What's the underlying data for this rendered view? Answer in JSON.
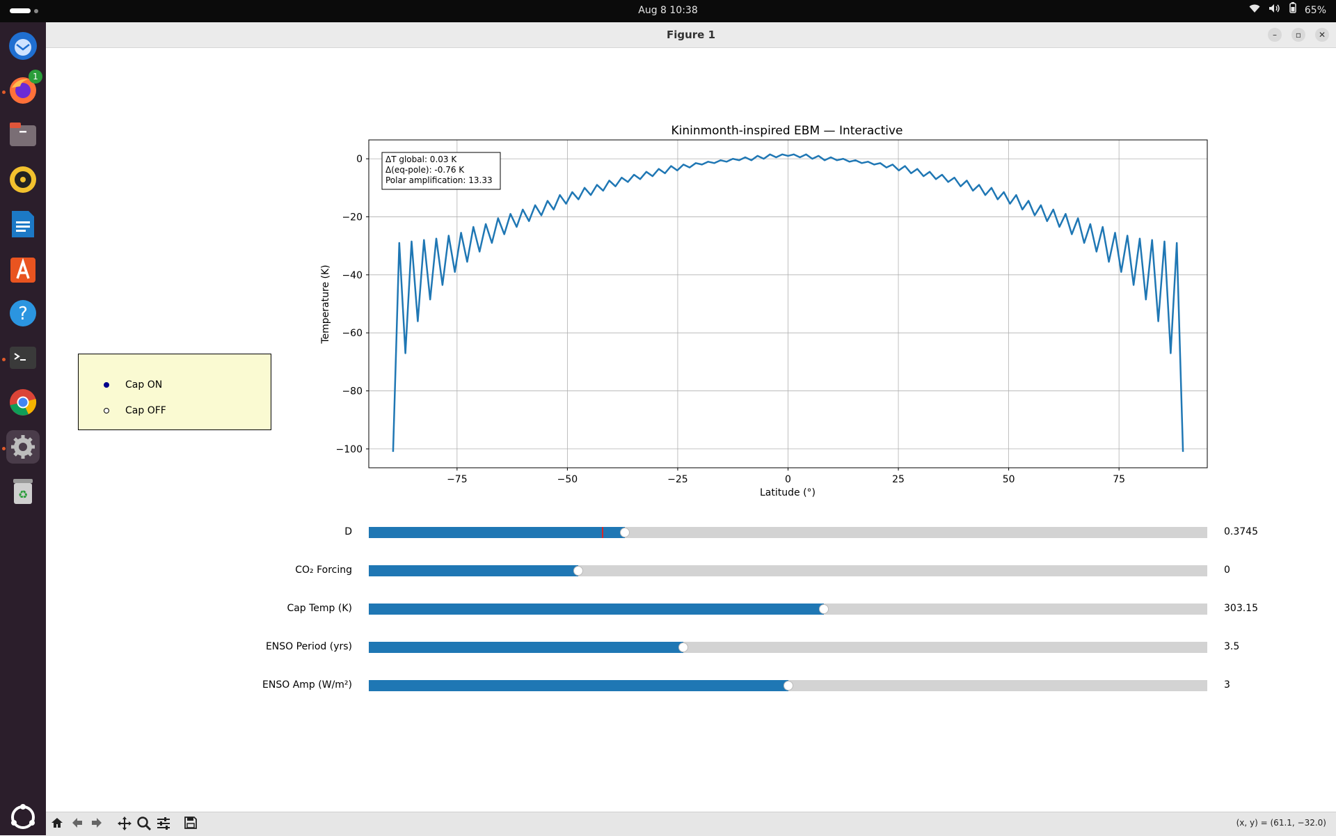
{
  "topbar": {
    "datetime": "Aug 8  10:38",
    "battery": "65%"
  },
  "dock": {
    "items": [
      "thunderbird-icon",
      "firefox-icon",
      "files-icon",
      "rhythmbox-icon",
      "writer-icon",
      "app-center-icon",
      "help-icon",
      "terminal-icon",
      "chrome-icon",
      "settings-icon",
      "trash-icon"
    ],
    "firefox_badge": "1"
  },
  "window": {
    "title": "Figure 1"
  },
  "radio": {
    "options": [
      {
        "label": "Cap ON",
        "selected": true
      },
      {
        "label": "Cap OFF",
        "selected": false
      }
    ]
  },
  "sliders": [
    {
      "label": "D",
      "value_text": "0.3745",
      "fraction": 0.305,
      "marker_fraction": 0.278
    },
    {
      "label": "CO₂ Forcing",
      "value_text": "0",
      "fraction": 0.25
    },
    {
      "label": "Cap Temp (K)",
      "value_text": "303.15",
      "fraction": 0.543
    },
    {
      "label": "ENSO Period (yrs)",
      "value_text": "3.5",
      "fraction": 0.375
    },
    {
      "label": "ENSO Amp (W/m²)",
      "value_text": "3",
      "fraction": 0.5
    }
  ],
  "toolbar": {
    "icons": [
      "home-icon",
      "back-icon",
      "forward-icon",
      "pan-icon",
      "zoom-icon",
      "configure-icon",
      "save-icon"
    ],
    "coords": "(x, y) = (61.1, −32.0)"
  },
  "chart_data": {
    "type": "line",
    "title": "Kininmonth-inspired EBM — Interactive",
    "xlabel": "Latitude (°)",
    "ylabel": "Temperature (K)",
    "xlim": [
      -95,
      95
    ],
    "ylim": [
      -106.5,
      6.5
    ],
    "xticks": [
      -75,
      -50,
      -25,
      0,
      25,
      50,
      75
    ],
    "yticks": [
      0,
      -20,
      -40,
      -60,
      -80,
      -100
    ],
    "xtick_labels": [
      "−75",
      "−50",
      "−25",
      "0",
      "25",
      "50",
      "75"
    ],
    "ytick_labels": [
      "0",
      "−20",
      "−40",
      "−60",
      "−80",
      "−100"
    ],
    "grid": true,
    "color": "#1f77b4",
    "annotation": [
      "ΔT global: 0.03 K",
      "Δ(eq-pole): -0.76 K",
      "Polar amplification: 13.33"
    ],
    "series": [
      {
        "x": [
          -89.5,
          -88.1,
          -86.7,
          -85.3,
          -83.9,
          -82.5,
          -81.1,
          -79.7,
          -78.3,
          -76.9,
          -75.5,
          -74.1,
          -72.7,
          -71.3,
          -69.9,
          -68.5,
          -67.1,
          -65.7,
          -64.3,
          -62.9,
          -61.5,
          -60.1,
          -58.7,
          -57.3,
          -55.9,
          -54.5,
          -53.1,
          -51.7,
          -50.3,
          -48.9,
          -47.5,
          -46.1,
          -44.7,
          -43.3,
          -41.9,
          -40.5,
          -39.1,
          -37.7,
          -36.3,
          -34.9,
          -33.5,
          -32.1,
          -30.7,
          -29.3,
          -27.9,
          -26.5,
          -25.1,
          -23.7,
          -22.3,
          -20.9,
          -19.5,
          -18.1,
          -16.7,
          -15.3,
          -13.9,
          -12.5,
          -11.1,
          -9.7,
          -8.3,
          -6.9,
          -5.5,
          -4.1,
          -2.7,
          -1.3,
          0,
          1.3,
          2.7,
          4.1,
          5.5,
          6.9,
          8.3,
          9.7,
          11.1,
          12.5,
          13.9,
          15.3,
          16.7,
          18.1,
          19.5,
          20.9,
          22.3,
          23.7,
          25.1,
          26.5,
          27.9,
          29.3,
          30.7,
          32.1,
          33.5,
          34.9,
          36.3,
          37.7,
          39.1,
          40.5,
          41.9,
          43.3,
          44.7,
          46.1,
          47.5,
          48.9,
          50.3,
          51.7,
          53.1,
          54.5,
          55.9,
          57.3,
          58.7,
          60.1,
          61.5,
          62.9,
          64.3,
          65.7,
          67.1,
          68.5,
          69.9,
          71.3,
          72.7,
          74.1,
          75.5,
          76.9,
          78.3,
          79.7,
          81.1,
          82.5,
          83.9,
          85.3,
          86.7,
          88.1,
          89.5
        ],
        "y": [
          -101,
          -29,
          -67,
          -28.5,
          -56,
          -28,
          -48.5,
          -27.5,
          -43.5,
          -26.5,
          -39,
          -25.5,
          -35.5,
          -23.5,
          -32,
          -22.5,
          -29,
          -20.5,
          -26,
          -19,
          -23.5,
          -17.5,
          -21.5,
          -16,
          -19.5,
          -14.5,
          -17.5,
          -12.5,
          -15.5,
          -11.5,
          -14,
          -10,
          -12.5,
          -9,
          -11,
          -7.5,
          -9.5,
          -6.5,
          -8,
          -5.5,
          -7,
          -4.5,
          -6,
          -3.5,
          -5,
          -2.5,
          -4,
          -2,
          -3,
          -1.5,
          -2,
          -1,
          -1.5,
          -0.5,
          -1,
          0,
          -0.5,
          0.5,
          -0.5,
          1,
          0,
          1.5,
          0.5,
          1.5,
          1,
          1.5,
          0.5,
          1.5,
          0,
          1,
          -0.5,
          0.5,
          -0.5,
          0,
          -1,
          -0.5,
          -1.5,
          -1,
          -2,
          -1.5,
          -3,
          -2,
          -4,
          -2.5,
          -5,
          -3.5,
          -6,
          -4.5,
          -7,
          -5.5,
          -8,
          -6.5,
          -9.5,
          -7.5,
          -11,
          -9,
          -12.5,
          -10,
          -14,
          -11.5,
          -15.5,
          -12.5,
          -17.5,
          -14.5,
          -19.5,
          -16,
          -21.5,
          -17.5,
          -23.5,
          -19,
          -26,
          -20.5,
          -29,
          -22.5,
          -32,
          -23.5,
          -35.5,
          -25.5,
          -39,
          -26.5,
          -43.5,
          -27.5,
          -48.5,
          -28,
          -56,
          -28.5,
          -67,
          -29,
          -101
        ]
      }
    ]
  }
}
